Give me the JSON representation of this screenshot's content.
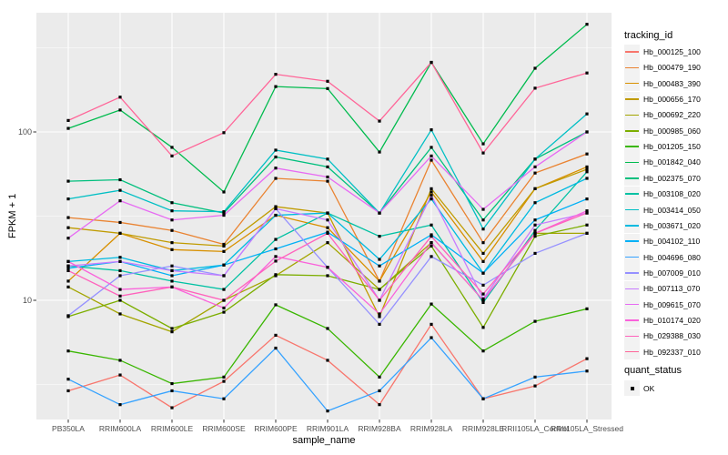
{
  "chart_data": {
    "type": "line",
    "title": "",
    "xlabel": "sample_name",
    "ylabel": "FPKM + 1",
    "y_scale": "log10",
    "y_major_ticks": [
      10,
      100
    ],
    "y_minor_ticks": [
      3.162,
      31.62,
      316.2
    ],
    "ylim": [
      1.95,
      510
    ],
    "grid": "on",
    "panel_color": "#EBEBEB",
    "grid_color": "#FFFFFF",
    "marker": "black-square",
    "legend_position": "right",
    "categories": [
      "PB350LA",
      "RRIM600LA",
      "RRIM600LE",
      "RRIM600SE",
      "RRIM600PE",
      "RRIM901LA",
      "RRIM928BA",
      "RRIM928LA",
      "RRIM928LE",
      "RRII105LA_Control",
      "RRII105LA_Stressed"
    ],
    "series": [
      {
        "name": "Hb_000125_100",
        "color": "#F8766D",
        "values": [
          2.9,
          3.6,
          2.3,
          3.3,
          6.2,
          4.4,
          2.4,
          7.2,
          2.6,
          3.1,
          4.5
        ]
      },
      {
        "name": "Hb_000479_190",
        "color": "#EA8331",
        "values": [
          31,
          29,
          26,
          21.5,
          53,
          51,
          13,
          68,
          22,
          57,
          74
        ]
      },
      {
        "name": "Hb_000483_390",
        "color": "#D89000",
        "values": [
          13,
          25,
          20,
          19.5,
          32,
          27,
          13,
          44,
          17,
          46,
          62
        ]
      },
      {
        "name": "Hb_000656_170",
        "color": "#C09B00",
        "values": [
          27,
          25,
          22,
          21,
          36,
          33,
          8,
          46,
          19,
          46,
          60
        ]
      },
      {
        "name": "Hb_000692_220",
        "color": "#A3A500",
        "values": [
          12,
          8.3,
          6.5,
          10,
          14,
          22,
          11.6,
          22,
          10,
          25,
          25
        ]
      },
      {
        "name": "Hb_000985_060",
        "color": "#7CAE00",
        "values": [
          8,
          10,
          6.8,
          8.5,
          14.2,
          14,
          11.6,
          21,
          6.9,
          24,
          28
        ]
      },
      {
        "name": "Hb_001205_150",
        "color": "#39B600",
        "values": [
          5.0,
          4.4,
          3.2,
          3.5,
          9.4,
          6.8,
          3.5,
          9.5,
          5.0,
          7.5,
          8.9
        ]
      },
      {
        "name": "Hb_001842_040",
        "color": "#00BB4E",
        "values": [
          105,
          135,
          81,
          44,
          186,
          181,
          76,
          259,
          85,
          239,
          436
        ]
      },
      {
        "name": "Hb_002375_070",
        "color": "#00BF7D",
        "values": [
          51,
          52,
          38,
          33,
          71,
          62,
          33,
          81,
          30,
          69,
          100
        ]
      },
      {
        "name": "Hb_003108_020",
        "color": "#00C1A3",
        "values": [
          16,
          15,
          13,
          11.6,
          23,
          33,
          24,
          28,
          9.7,
          26,
          58
        ]
      },
      {
        "name": "Hb_003414_050",
        "color": "#00BFC4",
        "values": [
          40,
          45,
          34,
          33.6,
          78,
          69,
          33,
          103,
          26.5,
          69,
          128
        ]
      },
      {
        "name": "Hb_003671_020",
        "color": "#00BAE0",
        "values": [
          17,
          18,
          15,
          16.2,
          32,
          33,
          17.5,
          40,
          14.5,
          38,
          53
        ]
      },
      {
        "name": "Hb_004102_110",
        "color": "#00B0F6",
        "values": [
          15.5,
          17,
          14,
          16.2,
          20.2,
          25.4,
          16,
          24.5,
          14.5,
          30,
          40
        ]
      },
      {
        "name": "Hb_004696_080",
        "color": "#35A2FF",
        "values": [
          3.4,
          2.4,
          2.9,
          2.6,
          5.2,
          2.2,
          2.9,
          6.0,
          2.6,
          3.5,
          3.8
        ]
      },
      {
        "name": "Hb_007009_010",
        "color": "#9590FF",
        "values": [
          8.1,
          14,
          16,
          14,
          35,
          15.7,
          7.2,
          18.2,
          12.3,
          19,
          25
        ]
      },
      {
        "name": "Hb_007113_070",
        "color": "#C77CFF",
        "values": [
          16,
          17,
          15,
          14,
          35,
          30,
          10,
          42,
          10.2,
          28,
          33
        ]
      },
      {
        "name": "Hb_009615_070",
        "color": "#E76BF3",
        "values": [
          23.4,
          39,
          30,
          32,
          61,
          54,
          33,
          72,
          34.7,
          62,
          100
        ]
      },
      {
        "name": "Hb_010174_020",
        "color": "#FA62DB",
        "values": [
          17,
          11.6,
          12,
          9,
          18.2,
          15.7,
          8.3,
          22,
          10,
          25,
          34
        ]
      },
      {
        "name": "Hb_029388_030",
        "color": "#FF62BC",
        "values": [
          15,
          10.6,
          12,
          10,
          17.1,
          25,
          10,
          24,
          10.9,
          25,
          33
        ]
      },
      {
        "name": "Hb_092337_010",
        "color": "#FF6598",
        "values": [
          117,
          161,
          72,
          99,
          220,
          200,
          116,
          259,
          75,
          182,
          224
        ]
      }
    ],
    "legend": {
      "color_title": "tracking_id",
      "shape_title": "quant_status",
      "shape_items": [
        {
          "label": "OK"
        }
      ]
    }
  }
}
